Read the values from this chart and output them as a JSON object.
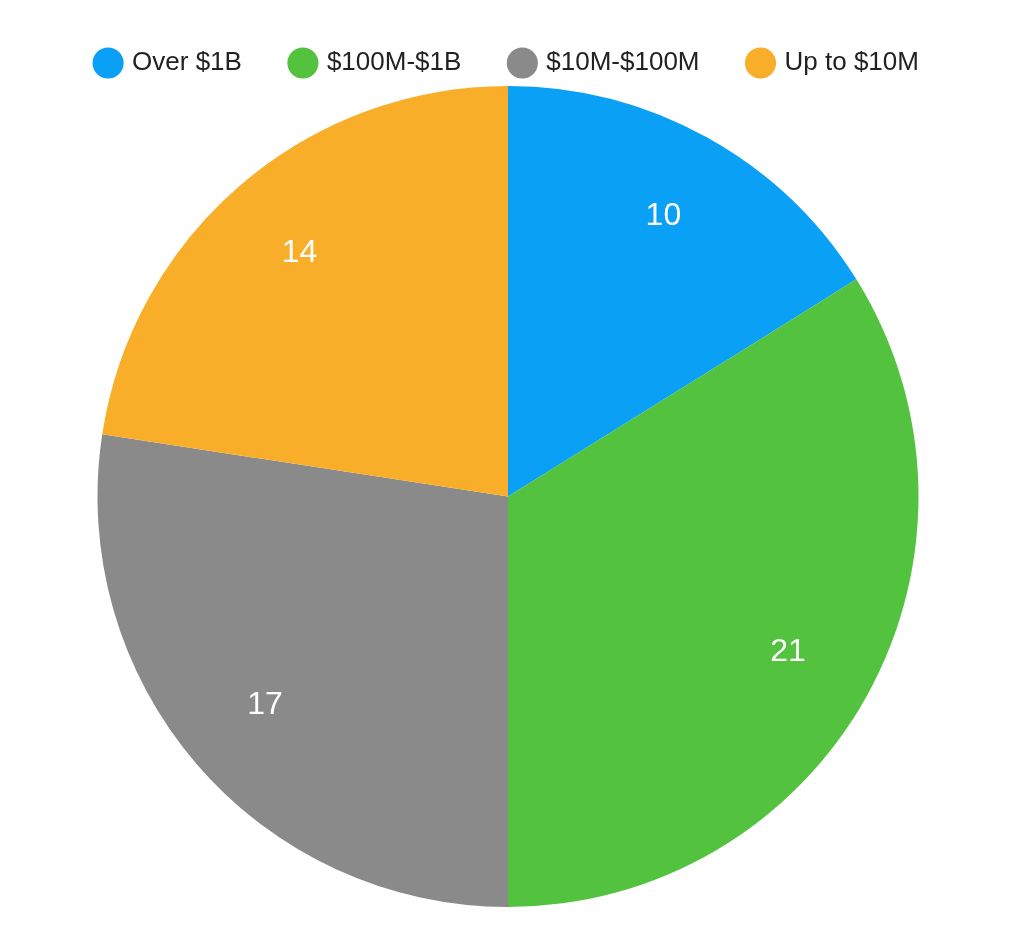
{
  "chart_data": {
    "type": "pie",
    "categories": [
      "Over $1B",
      "$100M-$1B",
      "$10M-$100M",
      "Up to $10M"
    ],
    "values": [
      10,
      21,
      17,
      14
    ],
    "colors": [
      "#0aa0f5",
      "#52c23f",
      "#8a8a8a",
      "#f9ae2a"
    ],
    "legend": "top",
    "data_labels": true
  }
}
